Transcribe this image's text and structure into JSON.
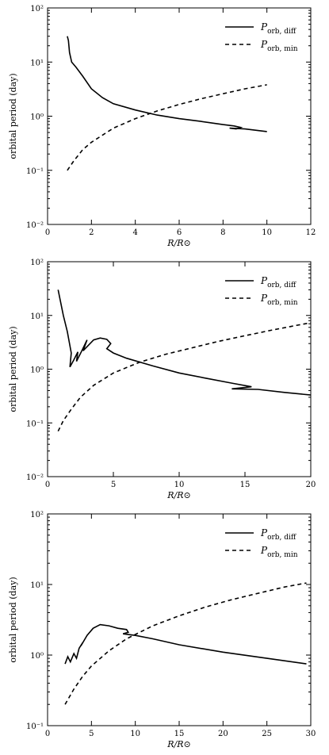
{
  "chart_data": [
    {
      "type": "line",
      "x_scale": "linear",
      "y_scale": "log",
      "xlim": [
        0,
        12
      ],
      "ylim": [
        0.01,
        100
      ],
      "x_ticks": [
        "0",
        "2",
        "4",
        "6",
        "8",
        "10",
        "12"
      ],
      "y_ticks": [
        "10⁻²",
        "10⁻¹",
        "10⁰",
        "10¹",
        "10²"
      ],
      "xlabel": "R/R⊙",
      "ylabel": "orbital period (day)",
      "legend": "top-right",
      "series": [
        {
          "name": "P",
          "name_sub": "orb, diff",
          "style": "solid",
          "points": [
            [
              0.9,
              30
            ],
            [
              0.95,
              25
            ],
            [
              1.0,
              15
            ],
            [
              1.1,
              10
            ],
            [
              1.3,
              8
            ],
            [
              1.6,
              5.5
            ],
            [
              2.0,
              3.2
            ],
            [
              2.5,
              2.2
            ],
            [
              3.0,
              1.7
            ],
            [
              4.0,
              1.3
            ],
            [
              5.0,
              1.05
            ],
            [
              6.0,
              0.9
            ],
            [
              7.0,
              0.8
            ],
            [
              8.0,
              0.7
            ],
            [
              8.5,
              0.66
            ],
            [
              8.8,
              0.62
            ],
            [
              8.6,
              0.58
            ],
            [
              8.3,
              0.6
            ],
            [
              9.0,
              0.58
            ],
            [
              10.0,
              0.52
            ]
          ]
        },
        {
          "name": "P",
          "name_sub": "orb, min",
          "style": "dashed",
          "points": [
            [
              0.9,
              0.1
            ],
            [
              1.2,
              0.15
            ],
            [
              1.6,
              0.24
            ],
            [
              2.0,
              0.33
            ],
            [
              3.0,
              0.6
            ],
            [
              4.0,
              0.9
            ],
            [
              5.0,
              1.25
            ],
            [
              6.0,
              1.65
            ],
            [
              7.0,
              2.1
            ],
            [
              8.0,
              2.6
            ],
            [
              9.0,
              3.2
            ],
            [
              10.0,
              3.8
            ]
          ]
        }
      ]
    },
    {
      "type": "line",
      "x_scale": "linear",
      "y_scale": "log",
      "xlim": [
        0,
        20
      ],
      "ylim": [
        0.01,
        100
      ],
      "x_ticks": [
        "0",
        "5",
        "10",
        "15",
        "20"
      ],
      "y_ticks": [
        "10⁻²",
        "10⁻¹",
        "10⁰",
        "10¹",
        "10²"
      ],
      "xlabel": "R/R⊙",
      "ylabel": "orbital period (day)",
      "legend": "top-right",
      "series": [
        {
          "name": "P",
          "name_sub": "orb, diff",
          "style": "solid",
          "points": [
            [
              0.8,
              30
            ],
            [
              1.2,
              10
            ],
            [
              1.5,
              5
            ],
            [
              1.8,
              2
            ],
            [
              1.7,
              1.1
            ],
            [
              2.0,
              1.5
            ],
            [
              2.3,
              2.1
            ],
            [
              2.2,
              1.4
            ],
            [
              2.6,
              2.2
            ],
            [
              3.0,
              3.5
            ],
            [
              2.7,
              2.2
            ],
            [
              3.5,
              3.5
            ],
            [
              4.0,
              3.8
            ],
            [
              4.5,
              3.6
            ],
            [
              4.8,
              3.0
            ],
            [
              4.5,
              2.4
            ],
            [
              5.0,
              2.0
            ],
            [
              6.0,
              1.6
            ],
            [
              8.0,
              1.15
            ],
            [
              10.0,
              0.85
            ],
            [
              12.0,
              0.68
            ],
            [
              14.0,
              0.55
            ],
            [
              15.5,
              0.47
            ],
            [
              14.0,
              0.43
            ],
            [
              16.0,
              0.42
            ],
            [
              18.0,
              0.37
            ],
            [
              20.0,
              0.33
            ]
          ]
        },
        {
          "name": "P",
          "name_sub": "orb, min",
          "style": "dashed",
          "points": [
            [
              0.8,
              0.07
            ],
            [
              1.2,
              0.11
            ],
            [
              1.8,
              0.18
            ],
            [
              2.5,
              0.3
            ],
            [
              3.5,
              0.5
            ],
            [
              5.0,
              0.85
            ],
            [
              7.0,
              1.35
            ],
            [
              9.0,
              1.9
            ],
            [
              11.0,
              2.5
            ],
            [
              13.0,
              3.3
            ],
            [
              15.0,
              4.2
            ],
            [
              17.0,
              5.3
            ],
            [
              19.0,
              6.6
            ],
            [
              20.0,
              7.3
            ]
          ]
        }
      ]
    },
    {
      "type": "line",
      "x_scale": "linear",
      "y_scale": "log",
      "xlim": [
        0,
        30
      ],
      "ylim": [
        0.1,
        100
      ],
      "x_ticks": [
        "0",
        "5",
        "10",
        "15",
        "20",
        "25",
        "30"
      ],
      "y_ticks": [
        "10⁻¹",
        "10⁰",
        "10¹",
        "10²"
      ],
      "xlabel": "R/R⊙",
      "ylabel": "orbital period (day)",
      "legend": "top-right",
      "series": [
        {
          "name": "P",
          "name_sub": "orb, diff",
          "style": "solid",
          "points": [
            [
              2.0,
              0.75
            ],
            [
              2.3,
              0.95
            ],
            [
              2.6,
              0.8
            ],
            [
              3.0,
              1.05
            ],
            [
              3.3,
              0.9
            ],
            [
              3.6,
              1.25
            ],
            [
              4.0,
              1.5
            ],
            [
              3.8,
              1.35
            ],
            [
              4.5,
              1.9
            ],
            [
              5.2,
              2.4
            ],
            [
              6.0,
              2.7
            ],
            [
              7.0,
              2.6
            ],
            [
              8.0,
              2.4
            ],
            [
              9.0,
              2.3
            ],
            [
              9.2,
              2.1
            ],
            [
              8.6,
              2.0
            ],
            [
              10.0,
              1.9
            ],
            [
              12.0,
              1.7
            ],
            [
              15.0,
              1.4
            ],
            [
              20.0,
              1.1
            ],
            [
              25.0,
              0.9
            ],
            [
              29.5,
              0.75
            ]
          ]
        },
        {
          "name": "P",
          "name_sub": "orb, min",
          "style": "dashed",
          "points": [
            [
              2.0,
              0.2
            ],
            [
              3.0,
              0.33
            ],
            [
              4.0,
              0.5
            ],
            [
              5.0,
              0.7
            ],
            [
              7.0,
              1.15
            ],
            [
              9.0,
              1.7
            ],
            [
              12.0,
              2.6
            ],
            [
              15.0,
              3.6
            ],
            [
              18.0,
              4.8
            ],
            [
              21.0,
              6.1
            ],
            [
              24.0,
              7.5
            ],
            [
              27.0,
              9.2
            ],
            [
              29.5,
              10.5
            ]
          ]
        }
      ]
    }
  ]
}
